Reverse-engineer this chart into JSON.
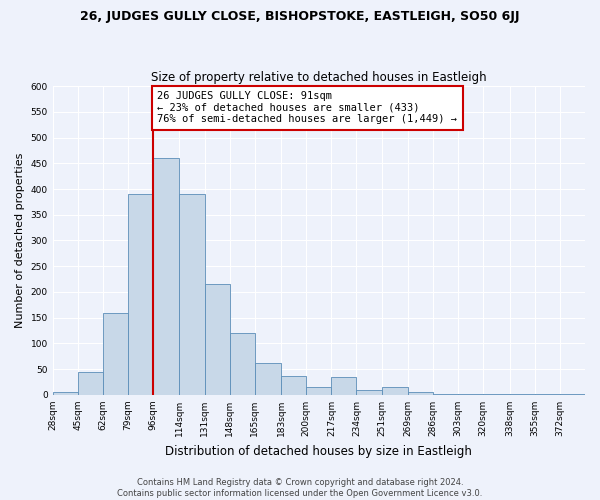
{
  "title": "26, JUDGES GULLY CLOSE, BISHOPSTOKE, EASTLEIGH, SO50 6JJ",
  "subtitle": "Size of property relative to detached houses in Eastleigh",
  "xlabel": "Distribution of detached houses by size in Eastleigh",
  "ylabel": "Number of detached properties",
  "bar_values": [
    5,
    44,
    160,
    390,
    460,
    390,
    215,
    120,
    62,
    37,
    15,
    35,
    10,
    15,
    5,
    2,
    2,
    2,
    2,
    2,
    2
  ],
  "bar_labels": [
    "28sqm",
    "45sqm",
    "62sqm",
    "79sqm",
    "96sqm",
    "114sqm",
    "131sqm",
    "148sqm",
    "165sqm",
    "183sqm",
    "200sqm",
    "217sqm",
    "234sqm",
    "251sqm",
    "269sqm",
    "286sqm",
    "303sqm",
    "320sqm",
    "338sqm",
    "355sqm",
    "372sqm"
  ],
  "bar_color": "#c8d8e8",
  "bar_edge_color": "#5b8db8",
  "vline_x": 96,
  "vline_color": "#cc0000",
  "annotation_text": "26 JUDGES GULLY CLOSE: 91sqm\n← 23% of detached houses are smaller (433)\n76% of semi-detached houses are larger (1,449) →",
  "annotation_box_color": "white",
  "annotation_box_edge_color": "#cc0000",
  "ylim": [
    0,
    600
  ],
  "yticks": [
    0,
    50,
    100,
    150,
    200,
    250,
    300,
    350,
    400,
    450,
    500,
    550,
    600
  ],
  "bin_edges": [
    28,
    45,
    62,
    79,
    96,
    114,
    131,
    148,
    165,
    183,
    200,
    217,
    234,
    251,
    269,
    286,
    303,
    320,
    338,
    355,
    372,
    389
  ],
  "footer_text": "Contains HM Land Registry data © Crown copyright and database right 2024.\nContains public sector information licensed under the Open Government Licence v3.0.",
  "bg_color": "#eef2fb",
  "grid_color": "white",
  "title_fontsize": 9,
  "subtitle_fontsize": 8.5,
  "ylabel_fontsize": 8,
  "xlabel_fontsize": 8.5,
  "tick_fontsize": 6.5,
  "footer_fontsize": 6,
  "annot_fontsize": 7.5
}
